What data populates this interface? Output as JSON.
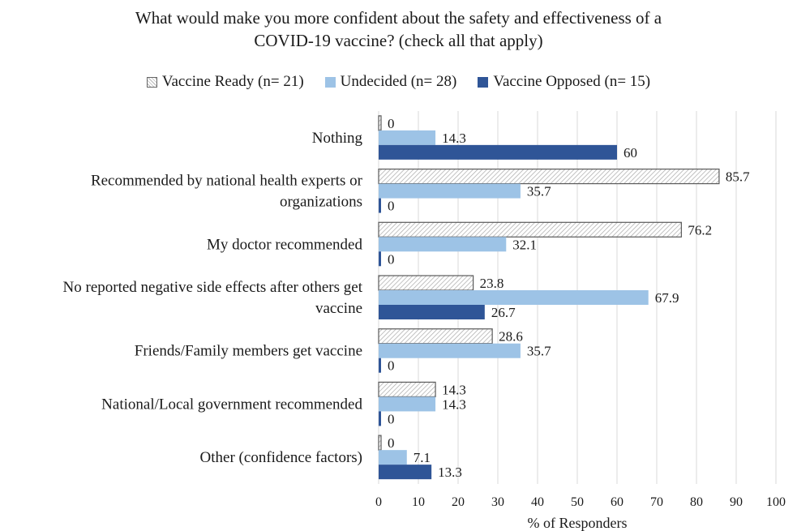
{
  "chart_data": {
    "type": "bar",
    "orientation": "horizontal",
    "title_lines": [
      "What would make you more confident about the safety and effectiveness of a",
      "COVID-19 vaccine? (check all that apply)"
    ],
    "xlabel": "% of Responders",
    "ylabel": "",
    "xlim": [
      0,
      100
    ],
    "xticks": [
      0,
      10,
      20,
      30,
      40,
      50,
      60,
      70,
      80,
      90,
      100
    ],
    "grid": "vertical",
    "legend_position": "top",
    "categories": [
      [
        "Nothing"
      ],
      [
        "Recommended by national health experts or",
        "organizations"
      ],
      [
        "My doctor recommended"
      ],
      [
        "No reported negative side effects after others get",
        "vaccine"
      ],
      [
        "Friends/Family members get vaccine"
      ],
      [
        "National/Local government recommended"
      ],
      [
        "Other (confidence factors)"
      ]
    ],
    "series": [
      {
        "name": "Vaccine Ready (n= 21)",
        "style": "hatched",
        "color": "#ffffff",
        "values": [
          0,
          85.7,
          76.2,
          23.8,
          28.6,
          14.3,
          0
        ]
      },
      {
        "name": "Undecided (n= 28)",
        "style": "solid",
        "color": "#9dc3e6",
        "values": [
          14.3,
          35.7,
          32.1,
          67.9,
          35.7,
          14.3,
          7.1
        ]
      },
      {
        "name": "Vaccine Opposed (n= 15)",
        "style": "solid",
        "color": "#2f5597",
        "values": [
          60,
          0,
          0,
          26.7,
          0,
          0,
          13.3
        ]
      }
    ],
    "value_labels": [
      [
        "0",
        "85.7",
        "76.2",
        "23.8",
        "28.6",
        "14.3",
        "0"
      ],
      [
        "14.3",
        "35.7",
        "32.1",
        "67.9",
        "35.7",
        "14.3",
        "7.1"
      ],
      [
        "60",
        "0",
        "0",
        "26.7",
        "0",
        "0",
        "13.3"
      ]
    ]
  }
}
